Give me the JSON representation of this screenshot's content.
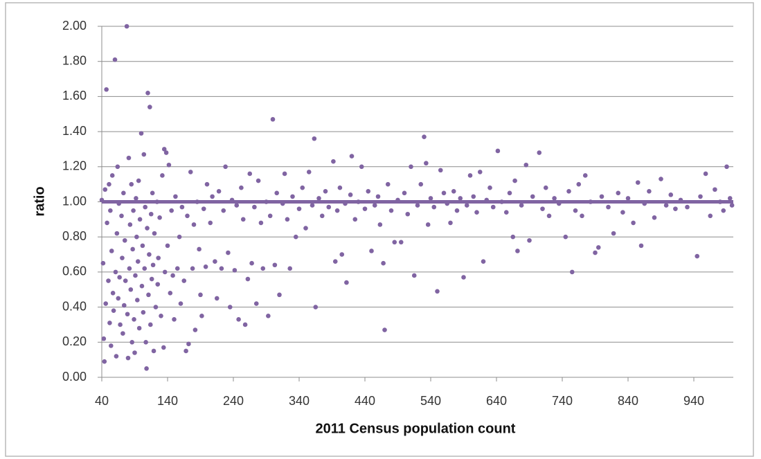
{
  "chart_data": {
    "type": "scatter",
    "x_label": "2011 Census population count",
    "y_label": "ratio",
    "color": "#8064a2",
    "reference_line": 1,
    "grid": true,
    "xlim": [
      40,
      1000
    ],
    "xticks": [
      40,
      140,
      240,
      340,
      440,
      540,
      640,
      740,
      840,
      940
    ],
    "ylim": [
      0,
      2
    ],
    "yticks": [
      {
        "value": 0,
        "label": "0.00"
      },
      {
        "value": 0.2,
        "label": "0.20"
      },
      {
        "value": 0.4,
        "label": "0.40"
      },
      {
        "value": 0.6,
        "label": "0.60"
      },
      {
        "value": 0.8,
        "label": "0.80"
      },
      {
        "value": 1,
        "label": "1.00"
      },
      {
        "value": 1.2,
        "label": "1.20"
      },
      {
        "value": 1.4,
        "label": "1.40"
      },
      {
        "value": 1.6,
        "label": "1.60"
      },
      {
        "value": 1.8,
        "label": "1.80"
      },
      {
        "value": 2,
        "label": "2.00"
      }
    ],
    "x": [
      40,
      42,
      43,
      44,
      45,
      46,
      47,
      48,
      50,
      51,
      52,
      53,
      54,
      55,
      56,
      57,
      58,
      60,
      61,
      62,
      63,
      64,
      65,
      66,
      67,
      68,
      70,
      71,
      72,
      73,
      74,
      75,
      76,
      78,
      79,
      80,
      81,
      82,
      83,
      84,
      85,
      86,
      87,
      88,
      89,
      90,
      91,
      92,
      93,
      94,
      95,
      96,
      97,
      98,
      100,
      101,
      102,
      103,
      104,
      105,
      106,
      107,
      108,
      109,
      110,
      111,
      112,
      113,
      114,
      115,
      116,
      117,
      118,
      119,
      120,
      122,
      124,
      125,
      126,
      128,
      130,
      132,
      134,
      135,
      136,
      138,
      140,
      142,
      144,
      146,
      148,
      150,
      152,
      155,
      158,
      160,
      162,
      165,
      168,
      170,
      172,
      175,
      178,
      180,
      182,
      185,
      188,
      190,
      192,
      195,
      198,
      200,
      205,
      208,
      212,
      215,
      218,
      222,
      225,
      228,
      232,
      235,
      238,
      242,
      245,
      248,
      252,
      255,
      258,
      262,
      265,
      268,
      272,
      275,
      278,
      282,
      285,
      290,
      293,
      296,
      300,
      303,
      306,
      310,
      315,
      318,
      322,
      326,
      330,
      335,
      340,
      345,
      350,
      355,
      360,
      363,
      365,
      370,
      375,
      380,
      385,
      392,
      395,
      398,
      402,
      405,
      410,
      412,
      418,
      420,
      425,
      430,
      435,
      440,
      445,
      450,
      455,
      460,
      463,
      468,
      470,
      475,
      480,
      485,
      490,
      495,
      500,
      505,
      510,
      515,
      520,
      525,
      530,
      533,
      536,
      540,
      545,
      550,
      555,
      560,
      565,
      570,
      575,
      580,
      585,
      590,
      595,
      600,
      605,
      610,
      615,
      620,
      625,
      630,
      635,
      642,
      648,
      655,
      660,
      665,
      668,
      672,
      678,
      685,
      690,
      695,
      705,
      710,
      715,
      720,
      728,
      735,
      745,
      750,
      755,
      760,
      765,
      770,
      775,
      783,
      790,
      795,
      800,
      810,
      818,
      825,
      832,
      840,
      848,
      855,
      860,
      865,
      872,
      880,
      890,
      898,
      905,
      912,
      920,
      930,
      945,
      950,
      958,
      965,
      972,
      980,
      985,
      990,
      995,
      998
    ],
    "values": [
      1.01,
      0.65,
      0.22,
      0.09,
      1.07,
      0.42,
      1.64,
      0.88,
      0.55,
      1.1,
      0.31,
      0.95,
      0.18,
      0.72,
      1.15,
      0.48,
      0.38,
      1.81,
      0.6,
      0.12,
      0.82,
      1.2,
      0.45,
      0.99,
      0.57,
      0.3,
      0.92,
      0.68,
      0.25,
      1.05,
      0.41,
      0.78,
      0.55,
      2.0,
      0.36,
      0.11,
      1.25,
      0.62,
      0.87,
      0.5,
      1.1,
      0.2,
      0.73,
      0.95,
      0.33,
      0.14,
      0.58,
      1.02,
      0.8,
      0.44,
      0.66,
      1.12,
      0.28,
      0.9,
      1.39,
      0.52,
      0.75,
      0.37,
      1.27,
      0.62,
      0.97,
      0.2,
      0.05,
      0.85,
      1.62,
      0.47,
      0.7,
      1.54,
      0.3,
      0.93,
      0.56,
      1.05,
      0.64,
      0.15,
      0.82,
      0.4,
      1.0,
      0.53,
      0.68,
      0.91,
      0.35,
      1.15,
      0.17,
      1.3,
      0.6,
      1.28,
      0.75,
      1.21,
      0.48,
      0.95,
      0.58,
      0.33,
      1.03,
      0.62,
      0.8,
      0.42,
      0.97,
      0.55,
      0.15,
      0.92,
      0.19,
      1.17,
      0.62,
      0.87,
      0.27,
      1.0,
      0.73,
      0.47,
      0.35,
      0.96,
      0.63,
      1.1,
      0.88,
      1.03,
      0.66,
      0.45,
      1.06,
      0.62,
      0.95,
      1.2,
      0.71,
      0.4,
      1.01,
      0.61,
      0.98,
      0.33,
      1.08,
      0.9,
      0.3,
      0.56,
      1.16,
      0.65,
      0.97,
      0.42,
      1.12,
      0.88,
      0.62,
      1.0,
      0.35,
      0.92,
      1.47,
      0.64,
      1.05,
      0.47,
      0.99,
      1.16,
      0.9,
      0.62,
      1.03,
      0.8,
      0.96,
      1.08,
      0.85,
      1.17,
      0.98,
      1.36,
      0.4,
      1.02,
      0.92,
      1.06,
      0.97,
      1.23,
      0.66,
      0.95,
      1.08,
      0.7,
      0.99,
      0.54,
      1.04,
      1.26,
      0.9,
      1.0,
      1.2,
      0.96,
      1.06,
      0.72,
      0.98,
      1.03,
      0.87,
      0.65,
      0.27,
      1.1,
      0.95,
      0.77,
      1.01,
      0.77,
      1.05,
      0.93,
      1.2,
      0.58,
      0.98,
      1.1,
      1.37,
      1.22,
      0.87,
      1.02,
      0.97,
      0.49,
      1.18,
      1.05,
      0.99,
      0.88,
      1.06,
      0.95,
      1.02,
      0.57,
      0.98,
      1.15,
      1.03,
      0.94,
      1.17,
      0.66,
      1.01,
      1.08,
      0.97,
      1.29,
      1.0,
      0.94,
      1.05,
      0.8,
      1.12,
      0.72,
      0.98,
      1.21,
      0.78,
      1.03,
      1.28,
      0.96,
      1.08,
      0.92,
      1.02,
      0.99,
      0.8,
      1.06,
      0.6,
      0.95,
      1.1,
      0.92,
      1.15,
      1.0,
      0.71,
      0.74,
      1.03,
      0.97,
      0.82,
      1.05,
      0.94,
      1.02,
      0.88,
      1.11,
      0.75,
      0.99,
      1.06,
      0.91,
      1.13,
      0.98,
      1.04,
      0.96,
      1.01,
      0.97,
      0.69,
      1.03,
      1.16,
      0.92,
      1.07,
      1.0,
      0.95,
      1.2,
      1.02,
      0.98
    ]
  }
}
